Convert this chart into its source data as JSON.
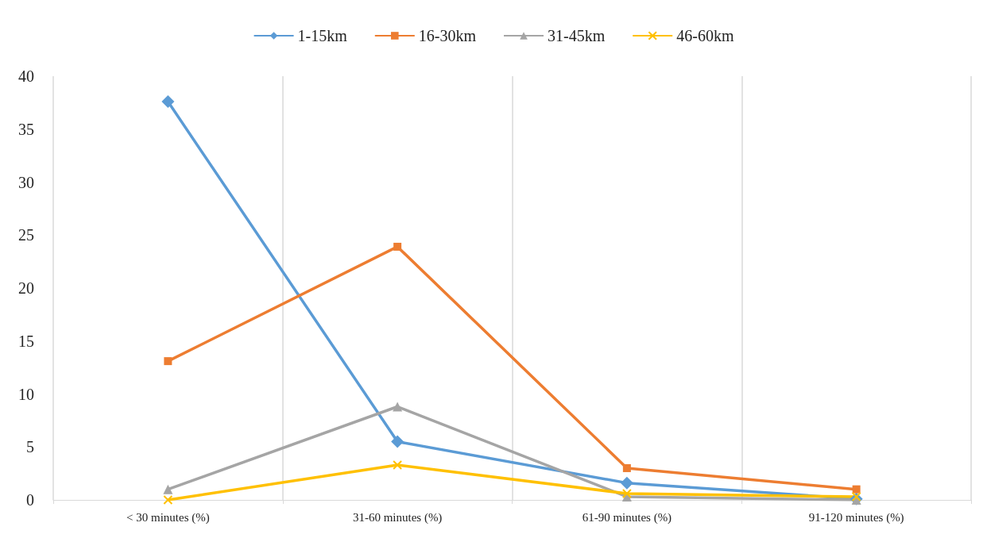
{
  "chart_data": {
    "type": "line",
    "categories": [
      "< 30 minutes (%)",
      "31-60 minutes (%)",
      "61-90 minutes (%)",
      "91-120 minutes (%)"
    ],
    "series": [
      {
        "name": "1-15km",
        "color": "#5b9bd5",
        "marker": "diamond",
        "values": [
          37.6,
          5.5,
          1.6,
          0.1
        ]
      },
      {
        "name": "16-30km",
        "color": "#ed7d31",
        "marker": "square",
        "values": [
          13.1,
          23.9,
          3.0,
          1.0
        ]
      },
      {
        "name": "31-45km",
        "color": "#a5a5a5",
        "marker": "triangle",
        "values": [
          1.0,
          8.8,
          0.3,
          0.0
        ]
      },
      {
        "name": "46-60km",
        "color": "#ffc000",
        "marker": "cross",
        "values": [
          0.0,
          3.3,
          0.6,
          0.3
        ]
      }
    ],
    "ylim": [
      0,
      40
    ],
    "yticks": [
      0,
      5,
      10,
      15,
      20,
      25,
      30,
      35,
      40
    ],
    "grid": "x",
    "legend": "top"
  }
}
